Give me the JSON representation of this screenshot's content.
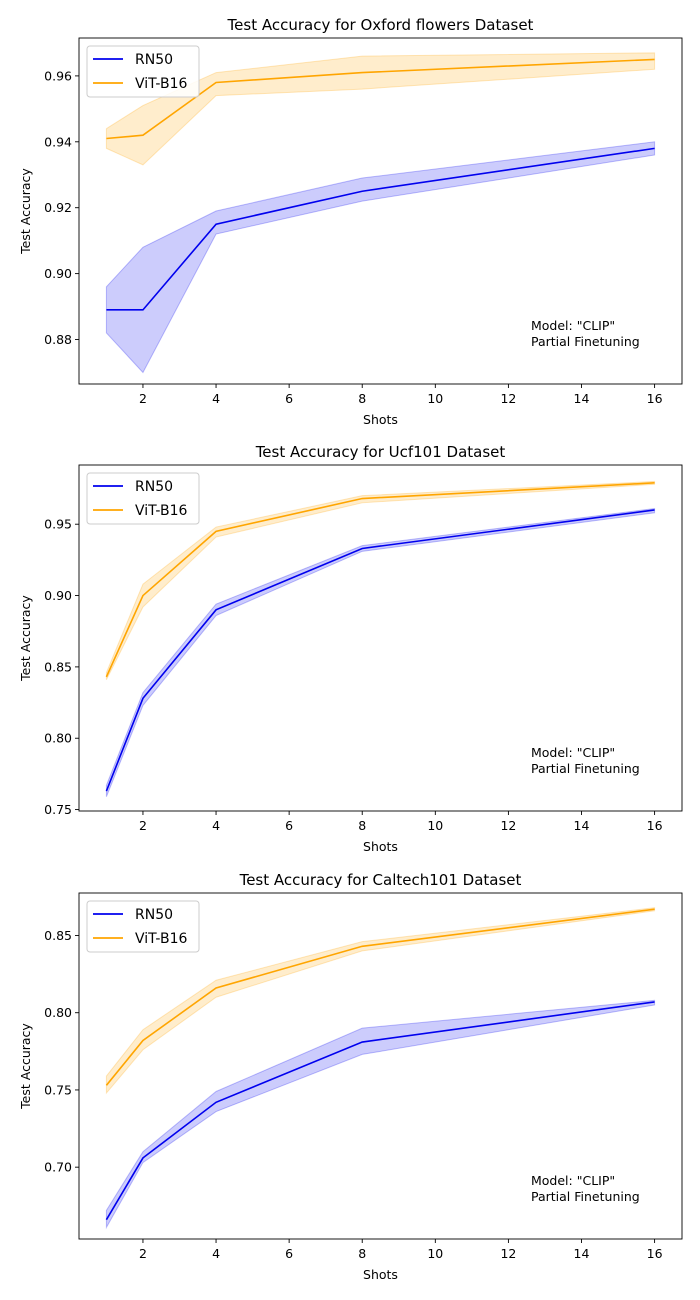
{
  "figure": {
    "colors": {
      "rn50": "#0000ee",
      "vit": "#ffa500"
    }
  },
  "chart_data": [
    {
      "type": "line",
      "title": "Test Accuracy for Oxford flowers Dataset",
      "xlabel": "Shots",
      "ylabel": "Test Accuracy",
      "x": [
        1,
        2,
        4,
        8,
        16
      ],
      "xlim": [
        0.25,
        16.75
      ],
      "ylim": [
        0.8665,
        0.9715
      ],
      "xticks": [
        2,
        4,
        6,
        8,
        10,
        12,
        14,
        16
      ],
      "xtick_labels": [
        "2",
        "4",
        "6",
        "8",
        "10",
        "12",
        "14",
        "16"
      ],
      "yticks": [
        0.88,
        0.9,
        0.92,
        0.94,
        0.96
      ],
      "ytick_labels": [
        "0.88",
        "0.90",
        "0.92",
        "0.94",
        "0.96"
      ],
      "legend_position": "top-left",
      "annotation": [
        "Model: \"CLIP\"",
        "Partial Finetuning"
      ],
      "series": [
        {
          "name": "RN50",
          "color": "#0000ee",
          "mean": [
            0.889,
            0.889,
            0.915,
            0.925,
            0.938
          ],
          "lower": [
            0.882,
            0.87,
            0.912,
            0.922,
            0.936
          ],
          "upper": [
            0.896,
            0.908,
            0.919,
            0.929,
            0.94
          ]
        },
        {
          "name": "ViT-B16",
          "color": "#ffa500",
          "mean": [
            0.941,
            0.942,
            0.958,
            0.961,
            0.965
          ],
          "lower": [
            0.938,
            0.933,
            0.954,
            0.956,
            0.962
          ],
          "upper": [
            0.944,
            0.951,
            0.961,
            0.966,
            0.967
          ]
        }
      ]
    },
    {
      "type": "line",
      "title": "Test Accuracy for Ucf101 Dataset",
      "xlabel": "Shots",
      "ylabel": "Test Accuracy",
      "x": [
        1,
        2,
        4,
        8,
        16
      ],
      "xlim": [
        0.25,
        16.75
      ],
      "ylim": [
        0.749,
        0.9915
      ],
      "xticks": [
        2,
        4,
        6,
        8,
        10,
        12,
        14,
        16
      ],
      "xtick_labels": [
        "2",
        "4",
        "6",
        "8",
        "10",
        "12",
        "14",
        "16"
      ],
      "yticks": [
        0.75,
        0.8,
        0.85,
        0.9,
        0.95
      ],
      "ytick_labels": [
        "0.75",
        "0.80",
        "0.85",
        "0.90",
        "0.95"
      ],
      "legend_position": "top-left",
      "annotation": [
        "Model: \"CLIP\"",
        "Partial Finetuning"
      ],
      "series": [
        {
          "name": "RN50",
          "color": "#0000ee",
          "mean": [
            0.763,
            0.828,
            0.89,
            0.933,
            0.96
          ],
          "lower": [
            0.759,
            0.823,
            0.886,
            0.931,
            0.958
          ],
          "upper": [
            0.767,
            0.832,
            0.894,
            0.935,
            0.961
          ]
        },
        {
          "name": "ViT-B16",
          "color": "#ffa500",
          "mean": [
            0.843,
            0.9,
            0.945,
            0.968,
            0.979
          ],
          "lower": [
            0.841,
            0.892,
            0.941,
            0.965,
            0.978
          ],
          "upper": [
            0.846,
            0.908,
            0.948,
            0.97,
            0.98
          ]
        }
      ]
    },
    {
      "type": "line",
      "title": "Test Accuracy for Caltech101 Dataset",
      "xlabel": "Shots",
      "ylabel": "Test Accuracy",
      "x": [
        1,
        2,
        4,
        8,
        16
      ],
      "xlim": [
        0.25,
        16.75
      ],
      "ylim": [
        0.6535,
        0.8775
      ],
      "xticks": [
        2,
        4,
        6,
        8,
        10,
        12,
        14,
        16
      ],
      "xtick_labels": [
        "2",
        "4",
        "6",
        "8",
        "10",
        "12",
        "14",
        "16"
      ],
      "yticks": [
        0.7,
        0.75,
        0.8,
        0.85
      ],
      "ytick_labels": [
        "0.70",
        "0.75",
        "0.80",
        "0.85"
      ],
      "legend_position": "top-left",
      "annotation": [
        "Model: \"CLIP\"",
        "Partial Finetuning"
      ],
      "series": [
        {
          "name": "RN50",
          "color": "#0000ee",
          "mean": [
            0.666,
            0.706,
            0.742,
            0.781,
            0.807
          ],
          "lower": [
            0.661,
            0.703,
            0.736,
            0.773,
            0.805
          ],
          "upper": [
            0.672,
            0.71,
            0.749,
            0.79,
            0.808
          ]
        },
        {
          "name": "ViT-B16",
          "color": "#ffa500",
          "mean": [
            0.753,
            0.782,
            0.816,
            0.843,
            0.867
          ],
          "lower": [
            0.748,
            0.776,
            0.81,
            0.84,
            0.866
          ],
          "upper": [
            0.759,
            0.789,
            0.821,
            0.846,
            0.868
          ]
        }
      ]
    }
  ]
}
